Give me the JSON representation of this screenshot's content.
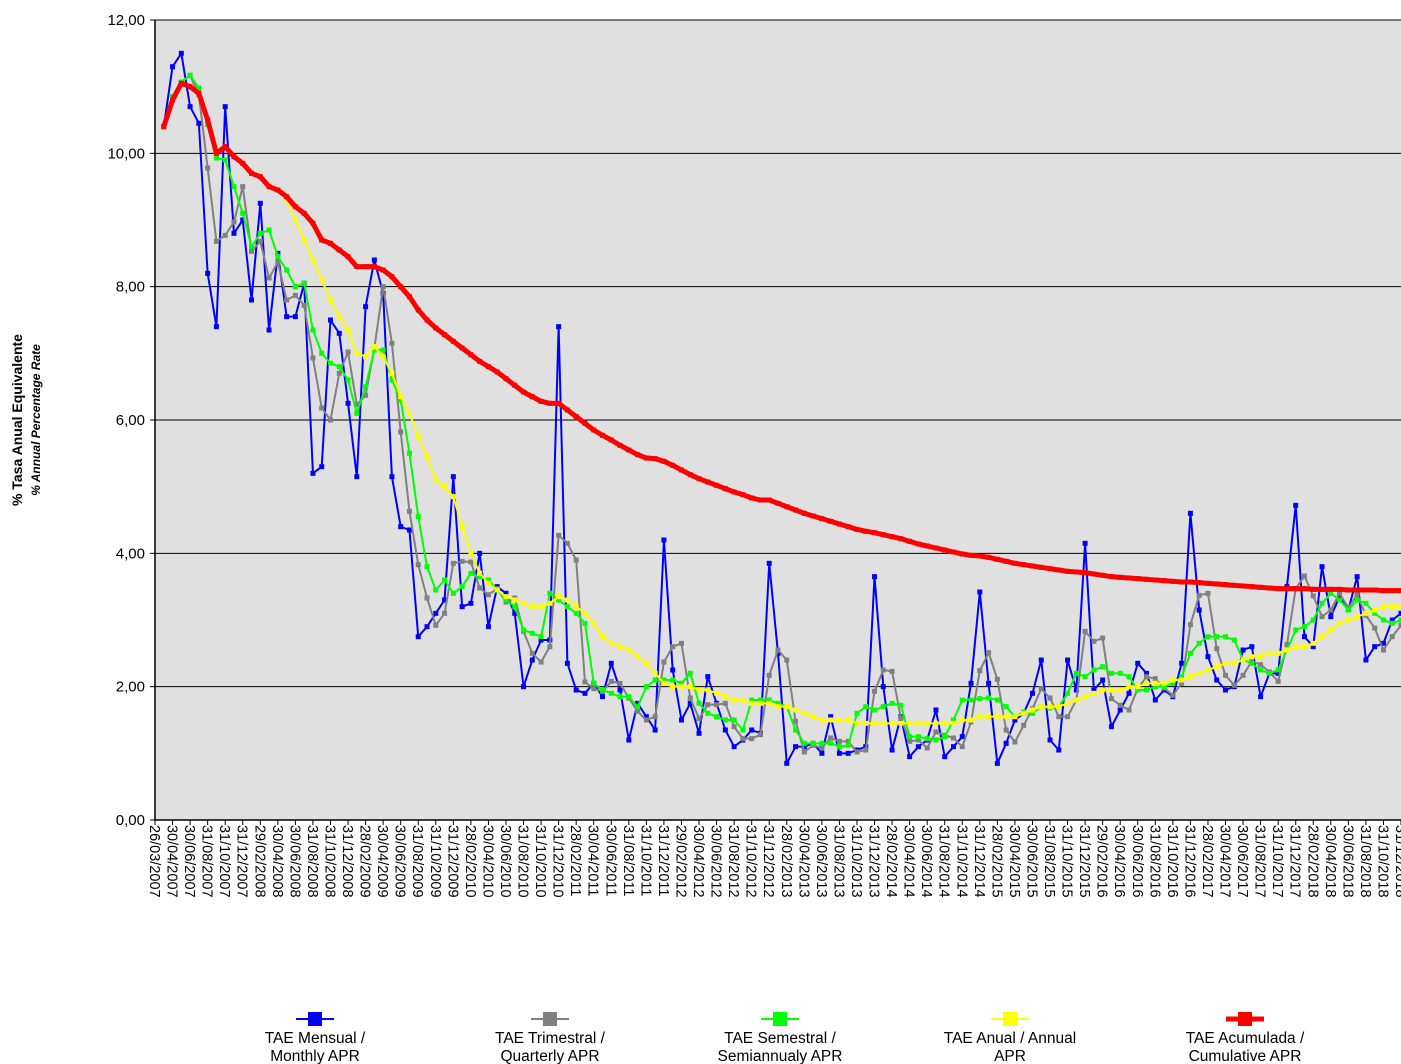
{
  "chart_data": {
    "type": "line",
    "y_label": "% Tasa Anual Equivalente",
    "y_label_en": "% Annual Percentage Rate",
    "categories": [
      "26/03/2007",
      "30/04/2007",
      null,
      "30/06/2007",
      null,
      "31/08/2007",
      null,
      "31/10/2007",
      null,
      "31/12/2007",
      null,
      "29/02/2008",
      null,
      "30/04/2008",
      null,
      "30/06/2008",
      null,
      "31/08/2008",
      null,
      "31/10/2008",
      null,
      "31/12/2008",
      null,
      "28/02/2009",
      null,
      "30/04/2009",
      null,
      "30/06/2009",
      null,
      "31/08/2009",
      null,
      "31/10/2009",
      null,
      "31/12/2009",
      null,
      "28/02/2010",
      null,
      "30/04/2010",
      null,
      "30/06/2010",
      null,
      "31/08/2010",
      null,
      "31/10/2010",
      null,
      "31/12/2010",
      null,
      "28/02/2011",
      null,
      "30/04/2011",
      null,
      "30/06/2011",
      null,
      "31/08/2011",
      null,
      "31/10/2011",
      null,
      "31/12/2011",
      null,
      "29/02/2012",
      null,
      "30/04/2012",
      null,
      "30/06/2012",
      null,
      "31/08/2012",
      null,
      "31/10/2012",
      null,
      "31/12/2012",
      null,
      "28/02/2013",
      null,
      "30/04/2013",
      null,
      "30/06/2013",
      null,
      "31/08/2013",
      null,
      "31/10/2013",
      null,
      "31/12/2013",
      null,
      "28/02/2014",
      null,
      "30/04/2014",
      null,
      "30/06/2014",
      null,
      "31/08/2014",
      null,
      "31/10/2014",
      null,
      "31/12/2014",
      null,
      "28/02/2015",
      null,
      "30/04/2015",
      null,
      "30/06/2015",
      null,
      "31/08/2015",
      null,
      "31/10/2015",
      null,
      "31/12/2015",
      null,
      "29/02/2016",
      null,
      "30/04/2016",
      null,
      "30/06/2016",
      null,
      "31/08/2016",
      null,
      "31/10/2016",
      null,
      "31/12/2016",
      null,
      "28/02/2017",
      null,
      "30/04/2017",
      null,
      "30/06/2017",
      null,
      "31/08/2017",
      null,
      "31/10/2017",
      null,
      "31/12/2017",
      null,
      "28/02/2018",
      null,
      "30/04/2018",
      null,
      "30/06/2018",
      null,
      "31/08/2018",
      null,
      "31/10/2018",
      null,
      "31/12/2018"
    ],
    "series": [
      {
        "name": "TAE Mensual /   Monthly APR",
        "color": "#0000ff",
        "values": [
          10.4,
          11.3,
          11.5,
          10.7,
          10.45,
          8.2,
          7.4,
          10.7,
          8.8,
          9.0,
          7.8,
          9.25,
          7.35,
          8.5,
          7.55,
          7.55,
          8.05,
          5.2,
          5.3,
          7.5,
          7.3,
          6.25,
          5.15,
          7.7,
          8.4,
          7.9,
          5.15,
          4.4,
          4.35,
          2.75,
          2.9,
          3.1,
          3.3,
          5.15,
          3.2,
          3.25,
          4.0,
          2.9,
          3.5,
          3.4,
          3.1,
          2.0,
          2.4,
          2.7,
          2.7,
          7.4,
          2.35,
          1.95,
          1.9,
          2.05,
          1.85,
          2.35,
          1.95,
          1.2,
          1.75,
          1.55,
          1.35,
          4.2,
          2.25,
          1.5,
          1.75,
          1.3,
          2.15,
          1.75,
          1.35,
          1.1,
          1.2,
          1.35,
          1.3,
          3.85,
          2.5,
          0.85,
          1.1,
          1.1,
          1.15,
          1.0,
          1.55,
          1.0,
          1.0,
          1.05,
          1.1,
          3.65,
          2.0,
          1.05,
          1.55,
          0.95,
          1.1,
          1.2,
          1.65,
          0.95,
          1.1,
          1.25,
          2.05,
          3.42,
          2.05,
          0.85,
          1.15,
          1.5,
          1.6,
          1.9,
          2.4,
          1.2,
          1.05,
          2.4,
          1.95,
          4.15,
          1.95,
          2.1,
          1.4,
          1.65,
          1.9,
          2.35,
          2.2,
          1.8,
          1.95,
          1.85,
          2.35,
          4.6,
          3.15,
          2.45,
          2.1,
          1.95,
          2.0,
          2.55,
          2.6,
          1.85,
          2.2,
          2.2,
          3.5,
          4.72,
          2.75,
          2.6,
          3.8,
          3.05,
          3.35,
          3.15,
          3.65,
          2.4,
          2.6,
          2.65,
          3.0,
          3.1
        ]
      },
      {
        "name": "TAE Trimestral / Quarterly APR",
        "color": "#808080",
        "values": [
          10.4,
          10.85,
          11.07,
          11.17,
          10.88,
          9.78,
          8.68,
          8.77,
          8.97,
          9.5,
          8.53,
          8.68,
          8.13,
          8.37,
          7.8,
          7.87,
          7.72,
          6.93,
          6.18,
          6.0,
          6.7,
          7.02,
          6.23,
          6.37,
          7.08,
          8.0,
          7.15,
          5.82,
          4.63,
          3.83,
          3.33,
          2.92,
          3.1,
          3.85,
          3.88,
          3.87,
          3.48,
          3.38,
          3.47,
          3.27,
          3.33,
          2.83,
          2.5,
          2.37,
          2.6,
          4.27,
          4.15,
          3.9,
          2.07,
          1.97,
          1.93,
          2.08,
          2.05,
          1.83,
          1.63,
          1.5,
          1.55,
          2.37,
          2.6,
          2.65,
          1.83,
          1.52,
          1.73,
          1.73,
          1.75,
          1.4,
          1.22,
          1.22,
          1.28,
          2.17,
          2.55,
          2.4,
          1.48,
          1.02,
          1.12,
          1.08,
          1.23,
          1.18,
          1.18,
          1.02,
          1.05,
          1.93,
          2.25,
          2.23,
          1.53,
          1.18,
          1.2,
          1.08,
          1.32,
          1.27,
          1.23,
          1.1,
          1.47,
          2.24,
          2.51,
          2.11,
          1.35,
          1.17,
          1.42,
          1.67,
          1.97,
          1.83,
          1.55,
          1.55,
          1.8,
          2.83,
          2.68,
          2.73,
          1.82,
          1.72,
          1.65,
          1.97,
          2.15,
          2.12,
          1.98,
          1.87,
          2.05,
          2.93,
          3.37,
          3.4,
          2.57,
          2.17,
          2.02,
          2.17,
          2.38,
          2.33,
          2.22,
          2.08,
          2.63,
          3.47,
          3.66,
          3.36,
          3.05,
          3.15,
          3.4,
          3.18,
          3.38,
          3.07,
          2.88,
          2.55,
          2.75,
          2.92
        ]
      },
      {
        "name": "TAE Semestral / Semiannualy APR",
        "color": "#00ff00",
        "values": [
          10.4,
          10.85,
          11.07,
          11.17,
          10.98,
          10.43,
          9.93,
          9.9,
          9.5,
          9.1,
          8.6,
          8.8,
          8.85,
          8.45,
          8.25,
          8.0,
          8.05,
          7.35,
          7.0,
          6.85,
          6.8,
          6.6,
          6.1,
          6.5,
          7.05,
          7.05,
          6.6,
          6.3,
          5.5,
          4.55,
          3.8,
          3.45,
          3.6,
          3.4,
          3.5,
          3.7,
          3.65,
          3.6,
          3.45,
          3.3,
          3.2,
          2.85,
          2.8,
          2.75,
          3.4,
          3.3,
          3.2,
          3.1,
          2.95,
          2.05,
          1.95,
          1.9,
          1.85,
          1.85,
          1.7,
          2.0,
          2.1,
          2.1,
          2.1,
          2.05,
          2.2,
          1.75,
          1.6,
          1.55,
          1.5,
          1.5,
          1.35,
          1.8,
          1.8,
          1.8,
          1.75,
          1.7,
          1.35,
          1.15,
          1.15,
          1.15,
          1.15,
          1.1,
          1.12,
          1.6,
          1.7,
          1.65,
          1.7,
          1.75,
          1.72,
          1.25,
          1.25,
          1.22,
          1.2,
          1.25,
          1.5,
          1.8,
          1.8,
          1.82,
          1.83,
          1.8,
          1.7,
          1.55,
          1.62,
          1.6,
          1.7,
          1.68,
          1.7,
          1.9,
          2.2,
          2.15,
          2.25,
          2.3,
          2.2,
          2.2,
          2.15,
          1.95,
          1.95,
          2.0,
          2.0,
          2.05,
          2.15,
          2.5,
          2.65,
          2.75,
          2.75,
          2.75,
          2.7,
          2.4,
          2.35,
          2.25,
          2.2,
          2.25,
          2.55,
          2.85,
          2.9,
          3.0,
          3.25,
          3.4,
          3.3,
          3.15,
          3.3,
          3.25,
          3.1,
          3.0,
          2.95,
          3.0
        ]
      },
      {
        "name": "TAE Anual / Annual APR",
        "color": "#ffff00",
        "values": [
          null,
          null,
          null,
          null,
          null,
          null,
          null,
          null,
          null,
          null,
          null,
          null,
          null,
          9.45,
          9.3,
          9.0,
          8.7,
          8.4,
          8.1,
          7.8,
          7.55,
          7.35,
          7.0,
          6.95,
          7.1,
          6.95,
          6.7,
          6.35,
          6.1,
          5.75,
          5.45,
          5.1,
          5.0,
          4.85,
          4.4,
          4.0,
          3.7,
          3.55,
          3.45,
          3.35,
          3.3,
          3.25,
          3.2,
          3.2,
          3.25,
          3.35,
          3.3,
          3.2,
          3.1,
          2.95,
          2.75,
          2.65,
          2.6,
          2.55,
          2.45,
          2.35,
          2.2,
          2.05,
          2.0,
          2.0,
          2.0,
          1.95,
          1.95,
          1.9,
          1.85,
          1.8,
          1.8,
          1.75,
          1.75,
          1.75,
          1.7,
          1.7,
          1.65,
          1.6,
          1.55,
          1.5,
          1.5,
          1.5,
          1.5,
          1.45,
          1.45,
          1.45,
          1.45,
          1.45,
          1.45,
          1.45,
          1.45,
          1.45,
          1.45,
          1.45,
          1.45,
          1.5,
          1.5,
          1.55,
          1.55,
          1.55,
          1.55,
          1.55,
          1.6,
          1.65,
          1.7,
          1.7,
          1.7,
          1.75,
          1.8,
          1.85,
          1.9,
          1.95,
          1.95,
          1.95,
          2.0,
          2.0,
          2.05,
          2.05,
          2.05,
          2.1,
          2.1,
          2.15,
          2.2,
          2.25,
          2.3,
          2.35,
          2.35,
          2.4,
          2.45,
          2.45,
          2.5,
          2.5,
          2.55,
          2.6,
          2.6,
          2.65,
          2.75,
          2.85,
          2.95,
          3.0,
          3.05,
          3.1,
          3.15,
          3.2,
          3.2,
          3.2
        ]
      },
      {
        "name": "TAE Acumulada / Cumulative APR",
        "color": "#ff0000",
        "values": [
          10.4,
          10.8,
          11.05,
          11.0,
          10.9,
          10.5,
          10.0,
          10.1,
          9.95,
          9.85,
          9.7,
          9.65,
          9.5,
          9.45,
          9.35,
          9.2,
          9.1,
          8.95,
          8.7,
          8.65,
          8.55,
          8.45,
          8.3,
          8.3,
          8.3,
          8.25,
          8.15,
          8.0,
          7.85,
          7.65,
          7.5,
          7.38,
          7.28,
          7.18,
          7.08,
          6.98,
          6.88,
          6.8,
          6.72,
          6.62,
          6.52,
          6.42,
          6.35,
          6.28,
          6.25,
          6.25,
          6.15,
          6.05,
          5.95,
          5.85,
          5.77,
          5.7,
          5.62,
          5.55,
          5.48,
          5.43,
          5.42,
          5.38,
          5.32,
          5.25,
          5.18,
          5.12,
          5.07,
          5.02,
          4.97,
          4.92,
          4.88,
          4.83,
          4.8,
          4.8,
          4.75,
          4.7,
          4.65,
          4.6,
          4.56,
          4.52,
          4.48,
          4.44,
          4.4,
          4.36,
          4.33,
          4.31,
          4.28,
          4.25,
          4.22,
          4.18,
          4.14,
          4.11,
          4.08,
          4.05,
          4.02,
          3.99,
          3.97,
          3.96,
          3.94,
          3.91,
          3.88,
          3.85,
          3.83,
          3.81,
          3.79,
          3.77,
          3.75,
          3.73,
          3.72,
          3.71,
          3.69,
          3.67,
          3.65,
          3.64,
          3.63,
          3.62,
          3.61,
          3.6,
          3.59,
          3.58,
          3.57,
          3.57,
          3.56,
          3.55,
          3.54,
          3.53,
          3.52,
          3.51,
          3.5,
          3.49,
          3.48,
          3.47,
          3.47,
          3.47,
          3.47,
          3.46,
          3.46,
          3.46,
          3.46,
          3.45,
          3.45,
          3.45,
          3.45,
          3.44,
          3.44,
          3.44
        ]
      }
    ],
    "ylim": [
      0,
      12
    ],
    "yticks": [
      {
        "value": 0,
        "label": "0,00"
      },
      {
        "value": 2,
        "label": "2,00"
      },
      {
        "value": 4,
        "label": "4,00"
      },
      {
        "value": 6,
        "label": "6,00"
      },
      {
        "value": 8,
        "label": "8,00"
      },
      {
        "value": 10,
        "label": "10,00"
      },
      {
        "value": 12,
        "label": "12,00"
      }
    ],
    "grid": true,
    "legend": "bottom"
  }
}
